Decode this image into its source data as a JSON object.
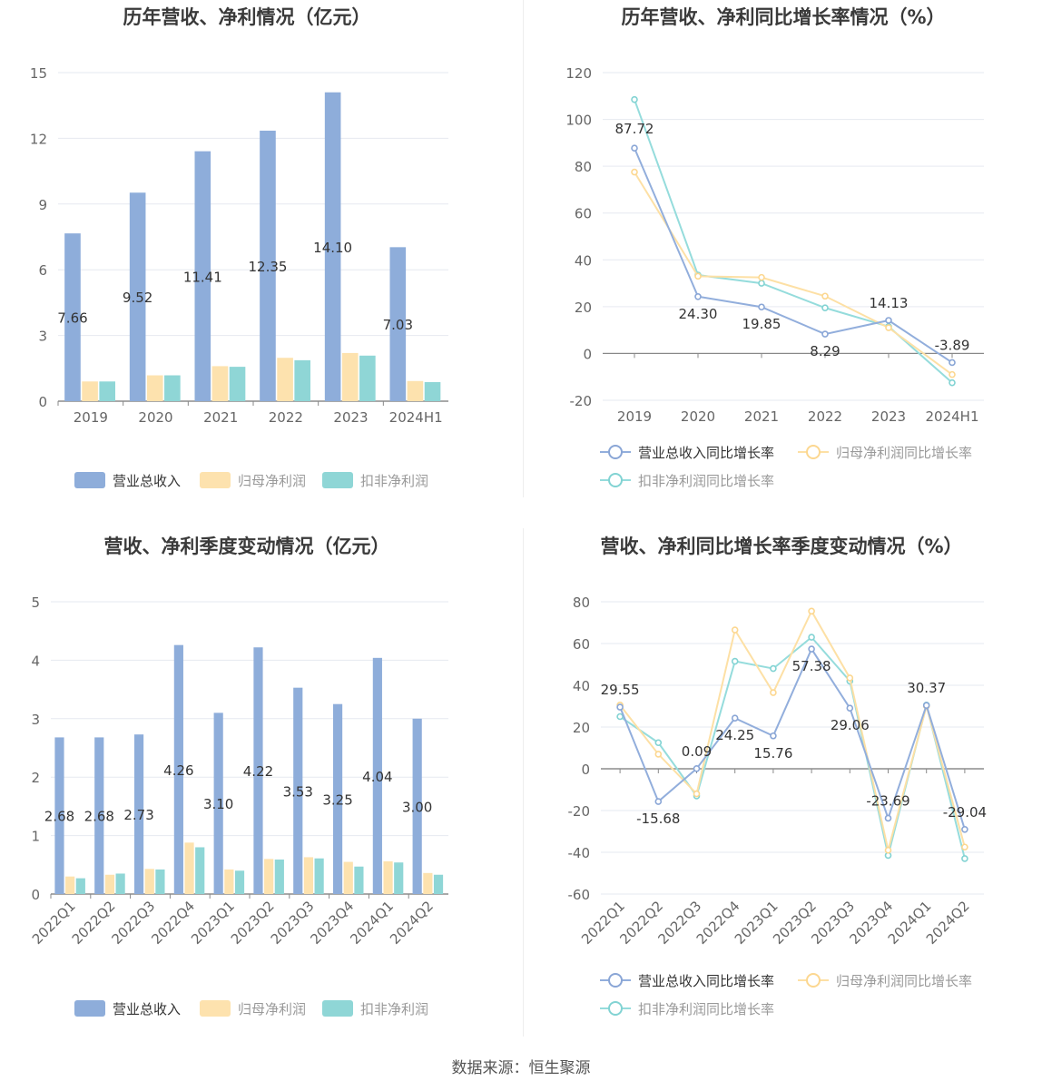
{
  "source_note": "数据来源：恒生聚源",
  "colors": {
    "revenue": "#8eadda",
    "net_profit": "#fde2ae",
    "deducted": "#8fd6d6"
  },
  "chart_data": [
    {
      "type": "bar",
      "title": "历年营收、净利情况（亿元）",
      "categories": [
        "2019",
        "2020",
        "2021",
        "2022",
        "2023",
        "2024H1"
      ],
      "ylim": [
        0,
        15
      ],
      "yticks": [
        "0",
        "3",
        "6",
        "9",
        "12",
        "15"
      ],
      "grid": true,
      "legend_position": "bottom",
      "series": [
        {
          "name": "营业总收入",
          "values": [
            7.66,
            9.52,
            11.41,
            12.35,
            14.1,
            7.03
          ],
          "labels": [
            "7.66",
            "9.52",
            "11.41",
            "12.35",
            "14.10",
            "7.03"
          ]
        },
        {
          "name": "归母净利润",
          "values": [
            0.9,
            1.18,
            1.6,
            1.98,
            2.2,
            0.92
          ]
        },
        {
          "name": "扣非净利润",
          "values": [
            0.9,
            1.18,
            1.57,
            1.87,
            2.08,
            0.87
          ]
        }
      ]
    },
    {
      "type": "line",
      "title": "历年营收、净利同比增长率情况（%）",
      "categories": [
        "2019",
        "2020",
        "2021",
        "2022",
        "2023",
        "2024H1"
      ],
      "ylim": [
        -20,
        120
      ],
      "yticks": [
        "-20",
        "0",
        "20",
        "40",
        "60",
        "80",
        "100",
        "120"
      ],
      "grid": true,
      "legend_position": "bottom",
      "series": [
        {
          "name": "营业总收入同比增长率",
          "values": [
            87.72,
            24.3,
            19.85,
            8.29,
            14.13,
            -3.89
          ],
          "labels": [
            "87.72",
            "24.30",
            "19.85",
            "8.29",
            "14.13",
            "-3.89"
          ]
        },
        {
          "name": "归母净利润同比增长率",
          "values": [
            77.5,
            33.0,
            32.5,
            24.5,
            11.0,
            -9.0
          ]
        },
        {
          "name": "扣非净利润同比增长率",
          "values": [
            108.5,
            33.5,
            30.0,
            19.5,
            11.5,
            -12.5
          ]
        }
      ]
    },
    {
      "type": "bar",
      "title": "营收、净利季度变动情况（亿元）",
      "categories": [
        "2022Q1",
        "2022Q2",
        "2022Q3",
        "2022Q4",
        "2023Q1",
        "2023Q2",
        "2023Q3",
        "2023Q4",
        "2024Q1",
        "2024Q2"
      ],
      "ylim": [
        0,
        5
      ],
      "yticks": [
        "0",
        "1",
        "2",
        "3",
        "4",
        "5"
      ],
      "grid": true,
      "legend_position": "bottom",
      "series": [
        {
          "name": "营业总收入",
          "values": [
            2.68,
            2.68,
            2.73,
            4.26,
            3.1,
            4.22,
            3.53,
            3.25,
            4.04,
            3.0
          ],
          "labels": [
            "2.68",
            "2.68",
            "2.73",
            "4.26",
            "3.10",
            "4.22",
            "3.53",
            "3.25",
            "4.04",
            "3.00"
          ]
        },
        {
          "name": "归母净利润",
          "values": [
            0.3,
            0.33,
            0.43,
            0.88,
            0.42,
            0.6,
            0.63,
            0.55,
            0.56,
            0.36
          ]
        },
        {
          "name": "扣非净利润",
          "values": [
            0.27,
            0.35,
            0.42,
            0.8,
            0.4,
            0.59,
            0.61,
            0.47,
            0.54,
            0.33
          ]
        }
      ]
    },
    {
      "type": "line",
      "title": "营收、净利同比增长率季度变动情况（%）",
      "categories": [
        "2022Q1",
        "2022Q2",
        "2022Q3",
        "2022Q4",
        "2023Q1",
        "2023Q2",
        "2023Q3",
        "2023Q4",
        "2024Q1",
        "2024Q2"
      ],
      "ylim": [
        -60,
        80
      ],
      "yticks": [
        "-60",
        "-40",
        "-20",
        "0",
        "20",
        "40",
        "60",
        "80"
      ],
      "grid": true,
      "legend_position": "bottom",
      "series": [
        {
          "name": "营业总收入同比增长率",
          "values": [
            29.55,
            -15.68,
            0.09,
            24.25,
            15.76,
            57.38,
            29.06,
            -23.69,
            30.37,
            -29.04
          ],
          "labels": [
            "29.55",
            "-15.68",
            "0.09",
            "24.25",
            "15.76",
            "57.38",
            "29.06",
            "-23.69",
            "30.37",
            "-29.04"
          ]
        },
        {
          "name": "归母净利润同比增长率",
          "values": [
            30.5,
            7.0,
            -12.0,
            66.5,
            36.5,
            75.5,
            43.5,
            -39.0,
            30.0,
            -37.5
          ]
        },
        {
          "name": "扣非净利润同比增长率",
          "values": [
            25.0,
            12.5,
            -13.0,
            51.5,
            48.0,
            63.0,
            42.0,
            -41.5,
            30.5,
            -43.0
          ]
        }
      ]
    }
  ]
}
